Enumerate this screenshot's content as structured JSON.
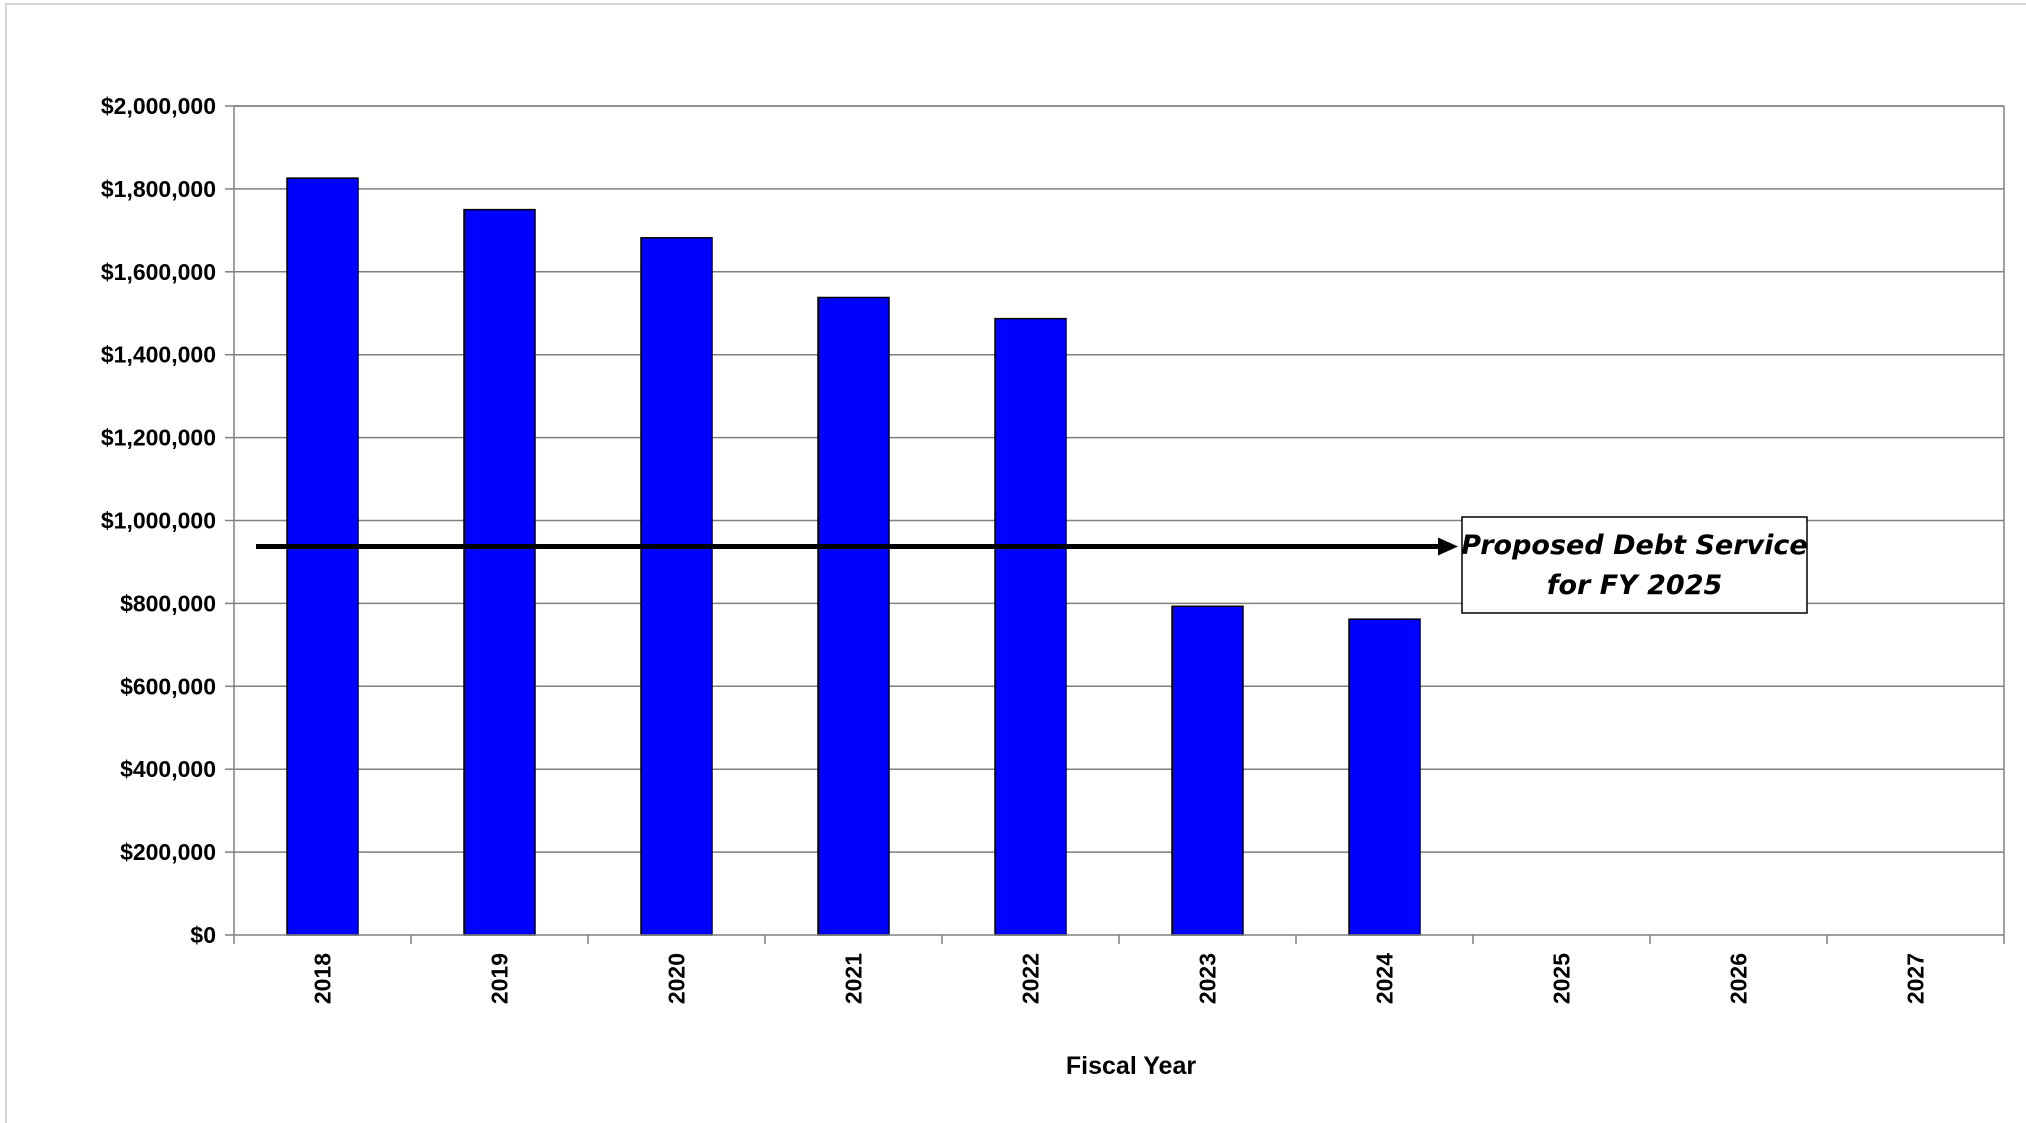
{
  "chart_data": {
    "type": "bar",
    "categories": [
      "2018",
      "2019",
      "2020",
      "2021",
      "2022",
      "2023",
      "2024",
      "2025",
      "2026",
      "2027"
    ],
    "series": [
      {
        "values": [
          1826000,
          1750000,
          1682000,
          1538000,
          1487000,
          793000,
          762000,
          null,
          null,
          null
        ],
        "color": "#0000FF"
      }
    ],
    "xlabel": "Fiscal Year",
    "ylabel": "",
    "ylim": [
      0,
      2000000
    ],
    "yticks": [
      0,
      200000,
      400000,
      600000,
      800000,
      1000000,
      1200000,
      1400000,
      1600000,
      1800000,
      2000000
    ],
    "ytick_labels": [
      "$0",
      "$200,000",
      "$400,000",
      "$600,000",
      "$800,000",
      "$1,000,000",
      "$1,200,000",
      "$1,400,000",
      "$1,600,000",
      "$1,800,000",
      "$2,000,000"
    ],
    "grid": true,
    "legend": "none",
    "annotations": [
      {
        "type": "reference-arrow",
        "value": 935000,
        "label_lines": [
          "Proposed Debt Service",
          "for FY 2025"
        ]
      }
    ]
  }
}
